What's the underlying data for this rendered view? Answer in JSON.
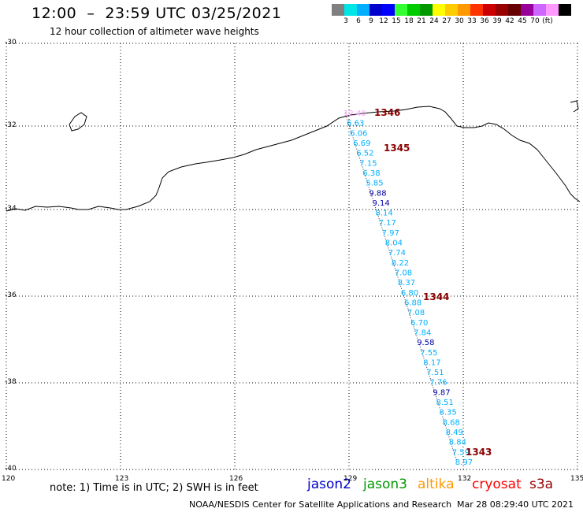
{
  "header": {
    "title": "12:00  –  23:59 UTC 03/25/2021",
    "subtitle": "12 hour collection of altimeter wave heights"
  },
  "scale": {
    "colors": [
      "#808080",
      "#00e5e5",
      "#00b0ff",
      "#0000cc",
      "#0000ff",
      "#33ff33",
      "#00cc00",
      "#009900",
      "#ffff00",
      "#ffcc00",
      "#ff9900",
      "#ff3300",
      "#cc0000",
      "#990000",
      "#660000",
      "#990099",
      "#cc66ff",
      "#ff99ff",
      "#000000"
    ],
    "labels": [
      "3",
      "6",
      "9",
      "12",
      "15",
      "18",
      "21",
      "24",
      "27",
      "30",
      "33",
      "36",
      "39",
      "42",
      "45",
      "70",
      "(ft)"
    ]
  },
  "map": {
    "lat_labels": [
      "-30",
      "-32",
      "-34",
      "-36",
      "-38",
      "-40"
    ],
    "lon_labels": [
      "120",
      "123",
      "126",
      "129",
      "132",
      "135"
    ],
    "wave_heights": [
      {
        "v": "12.40",
        "c": "#ff99ff"
      },
      {
        "v": "6.63",
        "c": "#00b0ff"
      },
      {
        "v": "6.06",
        "c": "#00b0ff"
      },
      {
        "v": "6.69",
        "c": "#00b0ff"
      },
      {
        "v": "6.52",
        "c": "#00b0ff"
      },
      {
        "v": "7.15",
        "c": "#00b0ff"
      },
      {
        "v": "6.38",
        "c": "#00b0ff"
      },
      {
        "v": "5.85",
        "c": "#00b0ff"
      },
      {
        "v": "9.88",
        "c": "#0000aa"
      },
      {
        "v": "9.14",
        "c": "#0000aa"
      },
      {
        "v": "8.14",
        "c": "#00b0ff"
      },
      {
        "v": "7.17",
        "c": "#00b0ff"
      },
      {
        "v": "7.97",
        "c": "#00b0ff"
      },
      {
        "v": "8.04",
        "c": "#00b0ff"
      },
      {
        "v": "7.74",
        "c": "#00b0ff"
      },
      {
        "v": "8.22",
        "c": "#00b0ff"
      },
      {
        "v": "7.08",
        "c": "#00b0ff"
      },
      {
        "v": "8.37",
        "c": "#00b0ff"
      },
      {
        "v": "6.80",
        "c": "#00b0ff"
      },
      {
        "v": "6.88",
        "c": "#00b0ff"
      },
      {
        "v": "7.08",
        "c": "#00b0ff"
      },
      {
        "v": "6.70",
        "c": "#00b0ff"
      },
      {
        "v": "7.84",
        "c": "#00b0ff"
      },
      {
        "v": "9.58",
        "c": "#0000aa"
      },
      {
        "v": "7.55",
        "c": "#00b0ff"
      },
      {
        "v": "8.17",
        "c": "#00b0ff"
      },
      {
        "v": "7.51",
        "c": "#00b0ff"
      },
      {
        "v": "7.76",
        "c": "#00b0ff"
      },
      {
        "v": "9.87",
        "c": "#0000aa"
      },
      {
        "v": "8.51",
        "c": "#00b0ff"
      },
      {
        "v": "8.35",
        "c": "#00b0ff"
      },
      {
        "v": "8.68",
        "c": "#00b0ff"
      },
      {
        "v": "8.49",
        "c": "#00b0ff"
      },
      {
        "v": "8.84",
        "c": "#00b0ff"
      },
      {
        "v": "7.59",
        "c": "#00b0ff"
      },
      {
        "v": "8.97",
        "c": "#00b0ff"
      }
    ],
    "time_labels": [
      "1346",
      "1345",
      "1344",
      "1343"
    ],
    "time_color": "#880000"
  },
  "footer": {
    "note": "note:  1) Time is in UTC;  2) SWH is in feet",
    "satellites": [
      {
        "name": "jason2",
        "color": "#0000cc"
      },
      {
        "name": "jason3",
        "color": "#009900"
      },
      {
        "name": "altika",
        "color": "#ff9900"
      },
      {
        "name": "cryosat",
        "color": "#ff0000"
      },
      {
        "name": "s3a",
        "color": "#990000"
      }
    ],
    "credit": "NOAA/NESDIS Center for Satellite Applications and Research",
    "timestamp": "Mar 28 08:29:40 UTC 2021"
  }
}
